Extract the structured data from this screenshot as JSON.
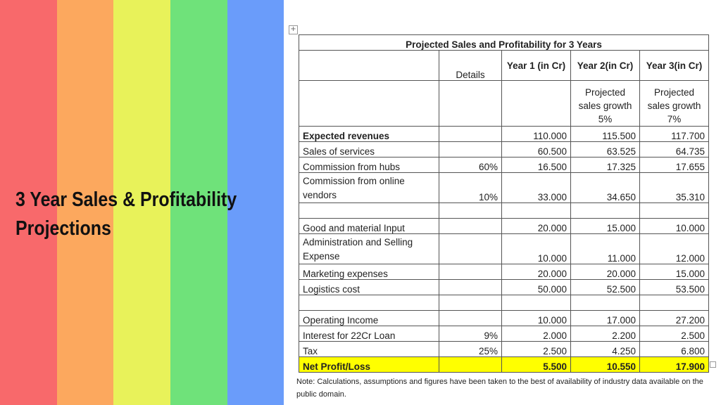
{
  "stripes": [
    {
      "color": "#f8696b"
    },
    {
      "color": "#fca85e"
    },
    {
      "color": "#e8f25a"
    },
    {
      "color": "#6fe27a"
    },
    {
      "color": "#6a9cfa"
    }
  ],
  "slide_title": {
    "line1": "3 Year Sales & Profitability",
    "line2": "Projections"
  },
  "table": {
    "title": "Projected Sales and Profitability for 3 Years",
    "headers": {
      "details": "Details",
      "year1": "Year 1 (in Cr)",
      "year2": "Year 2(in Cr)",
      "year3": "Year 3(in Cr)"
    },
    "growth": {
      "year2": "Projected sales growth 5%",
      "year3": "Projected sales growth 7%"
    },
    "rows": [
      {
        "label": "Expected revenues",
        "details": "",
        "y1": "110.000",
        "y2": "115.500",
        "y3": "117.700"
      },
      {
        "label": "Sales of services",
        "details": "",
        "y1": "60.500",
        "y2": "63.525",
        "y3": "64.735"
      },
      {
        "label": "Commission from hubs",
        "details": "60%",
        "y1": "16.500",
        "y2": "17.325",
        "y3": "17.655"
      },
      {
        "label": "Commission from online vendors",
        "details": "10%",
        "y1": "33.000",
        "y2": "34.650",
        "y3": "35.310"
      },
      {
        "label": "Good and material Input",
        "details": "",
        "y1": "20.000",
        "y2": "15.000",
        "y3": "10.000"
      },
      {
        "label": "Administration and Selling Expense",
        "details": "",
        "y1": "10.000",
        "y2": "11.000",
        "y3": "12.000"
      },
      {
        "label": "Marketing expenses",
        "details": "",
        "y1": "20.000",
        "y2": "20.000",
        "y3": "15.000"
      },
      {
        "label": "Logistics cost",
        "details": "",
        "y1": "50.000",
        "y2": "52.500",
        "y3": "53.500"
      },
      {
        "label": "Operating Income",
        "details": "",
        "y1": "10.000",
        "y2": "17.000",
        "y3": "27.200"
      },
      {
        "label": "Interest for 22Cr Loan",
        "details": "9%",
        "y1": "2.000",
        "y2": "2.200",
        "y3": "2.500"
      },
      {
        "label": "Tax",
        "details": "25%",
        "y1": "2.500",
        "y2": "4.250",
        "y3": "6.800"
      },
      {
        "label": "Net Profit/Loss",
        "details": "",
        "y1": "5.500",
        "y2": "10.550",
        "y3": "17.900"
      }
    ]
  },
  "note": "Note: Calculations, assumptions and figures have been taken to the best of availability of industry data available on the public domain.",
  "highlight_color": "#ffff00"
}
